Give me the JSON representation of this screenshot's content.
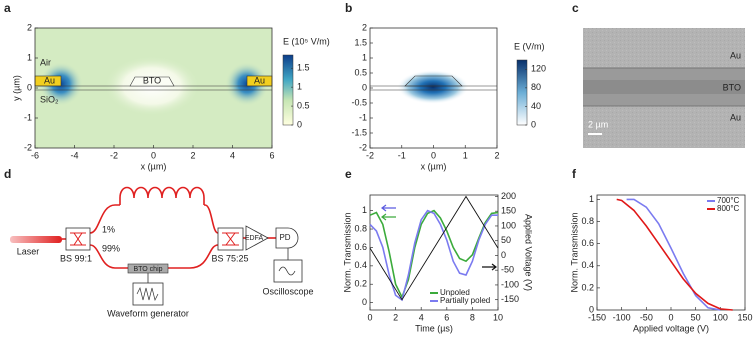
{
  "chart_data": [
    {
      "panel_label": "a",
      "type": "heatmap",
      "xlabel": "x (µm)",
      "ylabel": "y (µm)",
      "xlim": [
        -6,
        6
      ],
      "ylim": [
        -2,
        2
      ],
      "xticks": [
        -6,
        -4,
        -2,
        0,
        2,
        4,
        6
      ],
      "yticks": [
        -2,
        -1,
        0,
        1,
        2
      ],
      "colorbar": {
        "title": "E (10⁵ V/m)",
        "lim": [
          0,
          1.85
        ],
        "ticks": [
          0,
          0.5,
          1,
          1.5
        ]
      },
      "annotations": [
        "Air",
        "Au",
        "BTO",
        "Au",
        "SiO₂"
      ]
    },
    {
      "panel_label": "b",
      "type": "heatmap",
      "xlabel": "x (µm)",
      "xlim": [
        -2,
        2
      ],
      "ylim": [
        -2,
        2
      ],
      "xticks": [
        -2,
        -1,
        0,
        1,
        2
      ],
      "yticks": [
        -2,
        -1.5,
        -1,
        -0.5,
        0,
        0.5,
        1,
        1.5,
        2
      ],
      "colorbar": {
        "title": "E (V/m)",
        "lim": [
          0,
          140
        ],
        "ticks": [
          0,
          40,
          80,
          120
        ]
      }
    },
    {
      "panel_label": "e",
      "type": "line",
      "xlabel": "Time (µs)",
      "ylabel": "Norm. Transmission",
      "y2label": "Applied Voltage (V)",
      "xlim": [
        0,
        10
      ],
      "ylim": [
        -0.08,
        1.17
      ],
      "y2lim": [
        -185,
        205
      ],
      "xticks": [
        0,
        2,
        4,
        6,
        8,
        10
      ],
      "yticks": [
        0,
        0.2,
        0.4,
        0.6,
        0.8,
        1
      ],
      "y2ticks": [
        -150,
        -100,
        -50,
        0,
        50,
        100,
        150,
        200
      ],
      "legend": "lower right",
      "series": [
        {
          "name": "Unpoled",
          "color": "#3cab3c",
          "x": [
            0,
            0.5,
            1,
            1.5,
            2,
            2.5,
            3,
            3.5,
            4,
            4.5,
            5,
            5.5,
            6,
            6.5,
            7,
            7.5,
            8,
            8.5,
            9,
            9.5,
            10
          ],
          "values": [
            0.95,
            0.98,
            0.85,
            0.55,
            0.2,
            0.06,
            0.25,
            0.6,
            0.85,
            0.97,
            1.0,
            0.92,
            0.78,
            0.6,
            0.48,
            0.45,
            0.52,
            0.7,
            0.87,
            0.97,
            0.98
          ]
        },
        {
          "name": "Partially poled",
          "color": "#7b7bf0",
          "x": [
            0,
            0.5,
            1,
            1.5,
            2,
            2.5,
            3,
            3.5,
            4,
            4.5,
            5,
            5.5,
            6,
            6.5,
            7,
            7.5,
            8,
            8.5,
            9,
            9.5,
            10
          ],
          "values": [
            0.85,
            0.78,
            0.6,
            0.3,
            0.08,
            0.03,
            0.3,
            0.65,
            0.9,
            1.0,
            0.97,
            0.85,
            0.68,
            0.45,
            0.32,
            0.3,
            0.45,
            0.68,
            0.85,
            0.95,
            0.95
          ]
        },
        {
          "color": "#111111",
          "axis": "y2",
          "x": [
            0,
            2.5,
            7.5,
            10
          ],
          "values": [
            25,
            -150,
            200,
            25
          ]
        }
      ]
    },
    {
      "panel_label": "f",
      "type": "line",
      "xlabel": "Applied voltage (V)",
      "ylabel": "Norm. Transmission",
      "xlim": [
        -150,
        150
      ],
      "ylim": [
        0,
        1.04
      ],
      "xticks": [
        -150,
        -100,
        -50,
        0,
        50,
        100,
        150
      ],
      "yticks": [
        0,
        0.2,
        0.4,
        0.6,
        0.8,
        1
      ],
      "legend": "upper right",
      "series": [
        {
          "name": "700°C",
          "color": "#7b7bf0",
          "x": [
            -90,
            -75,
            -50,
            -25,
            0,
            25,
            50,
            75,
            100
          ],
          "values": [
            1,
            1,
            0.93,
            0.78,
            0.56,
            0.33,
            0.13,
            0.02,
            0
          ]
        },
        {
          "name": "800°C",
          "color": "#e01818",
          "x": [
            -110,
            -100,
            -75,
            -50,
            -25,
            0,
            25,
            50,
            75,
            100,
            125
          ],
          "values": [
            1,
            0.99,
            0.9,
            0.76,
            0.6,
            0.44,
            0.28,
            0.15,
            0.06,
            0.01,
            0
          ]
        }
      ]
    }
  ],
  "micrograph": {
    "panel_label": "c",
    "labels": [
      "Au",
      "BTO",
      "Au"
    ],
    "scale_bar": "2 µm"
  },
  "diagram": {
    "panel_label": "d",
    "nodes": [
      "Laser",
      "BS 99:1",
      "1%",
      "99%",
      "BTO chip",
      "Waveform generator",
      "BS 75:25",
      "EDFA",
      "PD",
      "Oscilloscope"
    ]
  }
}
